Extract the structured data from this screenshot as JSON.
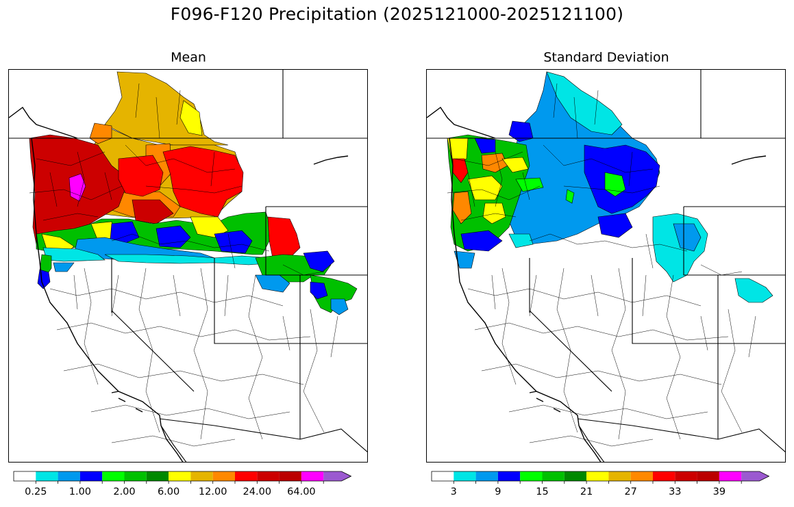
{
  "figure_title": "F096-F120 Precipitation (2025121000-2025121100)",
  "panels": [
    {
      "title": "Mean",
      "colorbar": {
        "colors": [
          "#ffffff",
          "#00e5e5",
          "#0099ee",
          "#0000ff",
          "#00ff00",
          "#00c000",
          "#008800",
          "#ffff00",
          "#e5b400",
          "#ff8800",
          "#ff0000",
          "#cc0000",
          "#bb0000",
          "#ff00ff",
          "#9b59d0"
        ],
        "tick_labels": [
          "0.25",
          "1.00",
          "2.00",
          "6.00",
          "12.00",
          "24.00",
          "64.00"
        ],
        "extend": "max"
      }
    },
    {
      "title": "Standard Deviation",
      "colorbar": {
        "colors": [
          "#ffffff",
          "#00e5e5",
          "#0099ee",
          "#0000ff",
          "#00ff00",
          "#00c000",
          "#008800",
          "#ffff00",
          "#e5b400",
          "#ff8800",
          "#ff0000",
          "#cc0000",
          "#bb0000",
          "#ff00ff",
          "#9b59d0"
        ],
        "tick_labels": [
          "3",
          "9",
          "15",
          "21",
          "27",
          "33",
          "39"
        ],
        "extend": "max"
      }
    }
  ]
}
